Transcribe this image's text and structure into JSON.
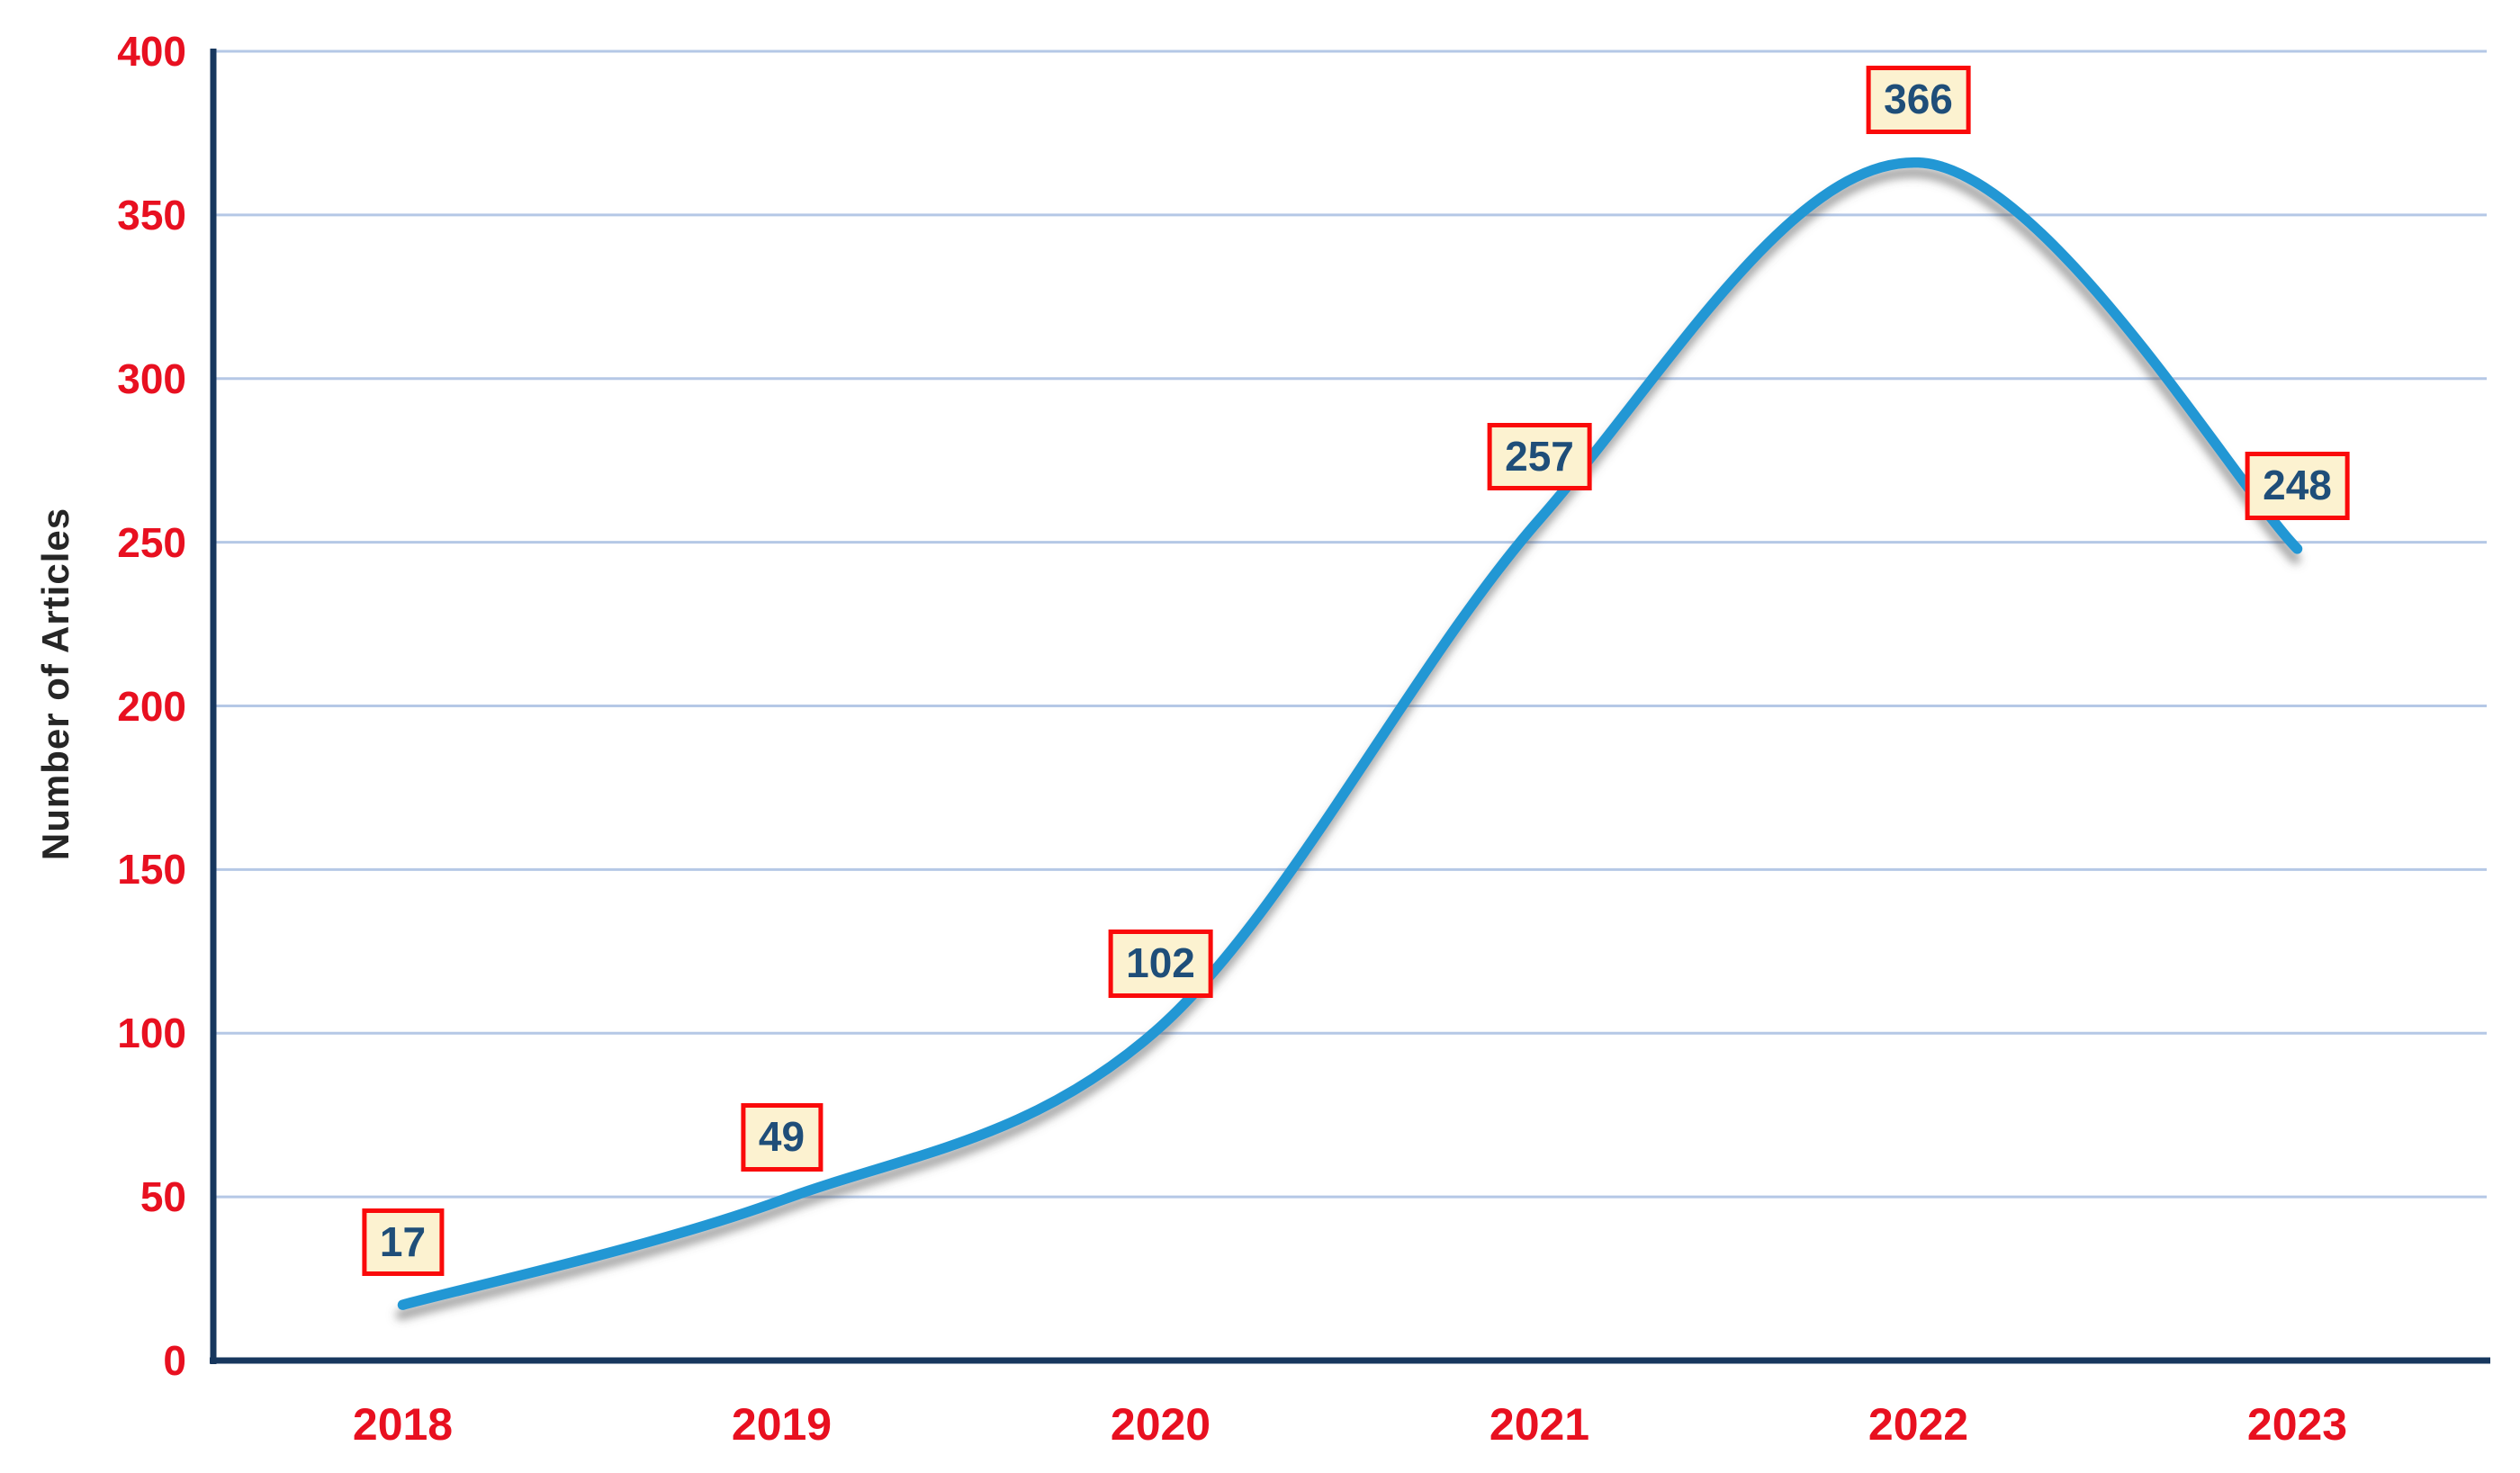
{
  "chart_data": {
    "type": "line",
    "title": "",
    "categories": [
      "2018",
      "2019",
      "2020",
      "2021",
      "2022",
      "2023"
    ],
    "series": [
      {
        "name": "Number of Articles",
        "values": [
          17,
          49,
          102,
          257,
          366,
          248
        ]
      }
    ],
    "data_labels": [
      "17",
      "49",
      "102",
      "257",
      "366",
      "248"
    ],
    "xlabel": "",
    "ylabel": "Number of Articles",
    "ylim": [
      0,
      400
    ],
    "ytick_interval": 50,
    "ytick_labels": [
      "0",
      "50",
      "100",
      "150",
      "200",
      "250",
      "300",
      "350",
      "400"
    ],
    "grid": "horizontal",
    "legend": "none",
    "smooth_line": true,
    "colors": {
      "line": "#2397d4",
      "line_shadow": "#555555",
      "gridline": "#b5c8e6",
      "axis": "#17375e",
      "tick_label": "#e81020",
      "label_box_fill": "#fcf2d0",
      "label_box_border": "#fa0a0a",
      "label_text": "#1f4e79",
      "axis_title_text": "#262626"
    }
  }
}
